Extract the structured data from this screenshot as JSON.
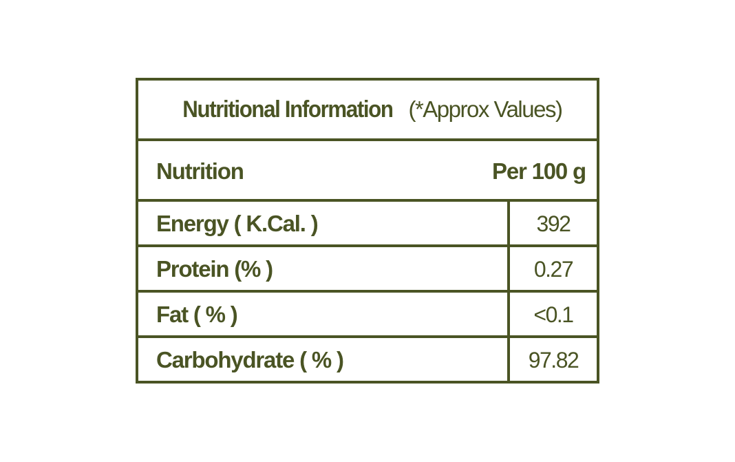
{
  "table": {
    "title": "Nutritional Information",
    "title_note": "(*Approx Values)",
    "header": {
      "nutrient_label": "Nutrition",
      "value_label": "Per 100 g"
    },
    "rows": [
      {
        "nutrient": "Energy ( K.Cal. )",
        "value": "392"
      },
      {
        "nutrient": "Protein (% )",
        "value": "0.27"
      },
      {
        "nutrient": "Fat ( % )",
        "value": "<0.1"
      },
      {
        "nutrient": "Carbohydrate ( % )",
        "value": "97.82"
      }
    ],
    "colors": {
      "text_and_border": "#4a5424",
      "background": "#ffffff"
    }
  }
}
